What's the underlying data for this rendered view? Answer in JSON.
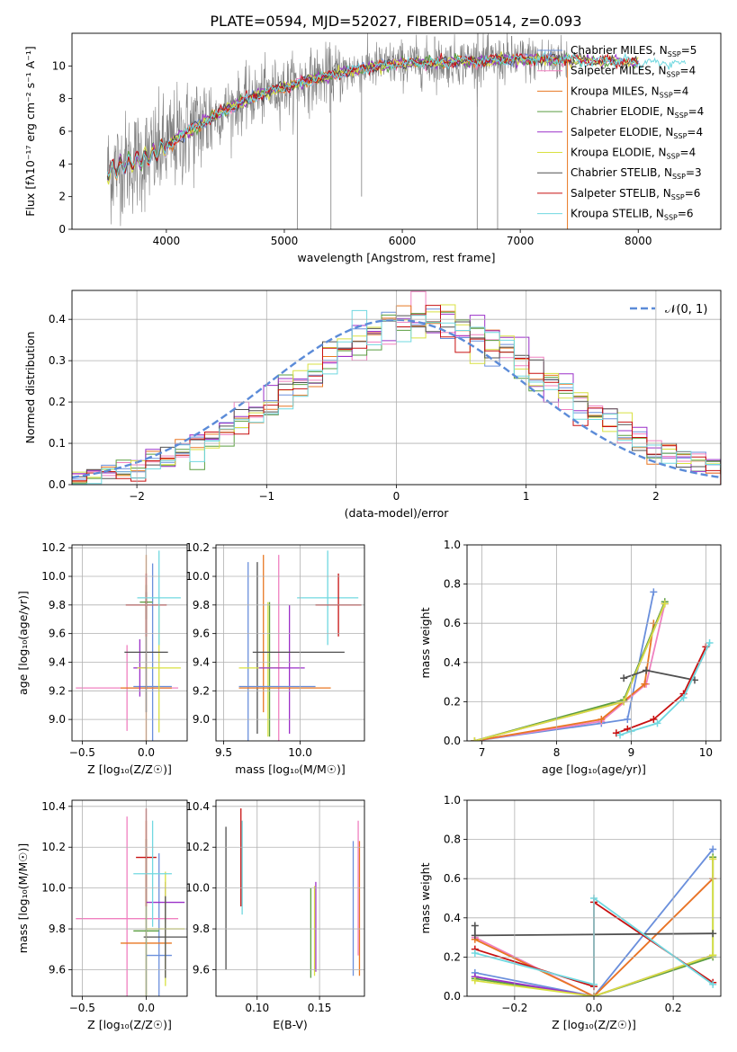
{
  "figure": {
    "title": "PLATE=0594, MJD=52027, FIBERID=0514, z=0.093"
  },
  "colors": {
    "chabrier_miles": "#6a8fdc",
    "salpeter_miles": "#f080c0",
    "kroupa_miles": "#e87722",
    "chabrier_elodie": "#5a9e40",
    "salpeter_elodie": "#9b30c8",
    "kroupa_elodie": "#d8e040",
    "chabrier_stelib": "#505050",
    "salpeter_stelib": "#c81010",
    "kroupa_stelib": "#70d8e0",
    "data": "#808080"
  },
  "chart_data": [
    {
      "id": "spectrum",
      "type": "line",
      "xlabel": "wavelength [Angstrom, rest frame]",
      "ylabel": "Flux [fλ10⁻¹⁷ erg cm⁻² s⁻¹ A⁻¹]",
      "xlim": [
        3200,
        8700
      ],
      "ylim": [
        0,
        12
      ],
      "xticks": [
        "4000",
        "5000",
        "6000",
        "7000",
        "8000"
      ],
      "yticks": [
        "0",
        "2",
        "4",
        "6",
        "8",
        "10"
      ],
      "legend": "right",
      "legend_entries": [
        {
          "key": "chabrier_miles",
          "label": "Chabrier MILES, N",
          "sub": "SSP",
          "tail": "=5"
        },
        {
          "key": "salpeter_miles",
          "label": "Salpeter MILES, N",
          "sub": "SSP",
          "tail": "=4"
        },
        {
          "key": "kroupa_miles",
          "label": "Kroupa MILES, N",
          "sub": "SSP",
          "tail": "=4"
        },
        {
          "key": "chabrier_elodie",
          "label": "Chabrier ELODIE, N",
          "sub": "SSP",
          "tail": "=4"
        },
        {
          "key": "salpeter_elodie",
          "label": "Salpeter ELODIE, N",
          "sub": "SSP",
          "tail": "=4"
        },
        {
          "key": "kroupa_elodie",
          "label": "Kroupa ELODIE, N",
          "sub": "SSP",
          "tail": "=4"
        },
        {
          "key": "chabrier_stelib",
          "label": "Chabrier STELIB, N",
          "sub": "SSP",
          "tail": "=3"
        },
        {
          "key": "salpeter_stelib",
          "label": "Salpeter STELIB, N",
          "sub": "SSP",
          "tail": "=6"
        },
        {
          "key": "kroupa_stelib",
          "label": "Kroupa STELIB, N",
          "sub": "SSP",
          "tail": "=6"
        }
      ],
      "continuum": {
        "x": [
          3500,
          3650,
          3800,
          3950,
          4100,
          4300,
          4500,
          4700,
          4900,
          5100,
          5300,
          5500,
          5700,
          5900,
          6100,
          6300,
          6500,
          6700,
          6900,
          7100,
          7300,
          7400
        ],
        "y": [
          3.5,
          4.0,
          4.3,
          4.8,
          5.6,
          6.5,
          7.3,
          8.0,
          8.5,
          8.9,
          9.3,
          9.6,
          9.9,
          10.1,
          10.2,
          10.2,
          10.3,
          10.3,
          10.4,
          10.4,
          10.4,
          10.4
        ]
      },
      "model_extension": {
        "x": [
          7400,
          7600,
          7800,
          8000,
          8200,
          8400
        ],
        "y": [
          10.4,
          10.3,
          10.3,
          10.2,
          10.2,
          10.1
        ]
      },
      "noise_sigma": [
        {
          "x": [
            3500,
            4400
          ],
          "sigma": 1.6
        },
        {
          "x": [
            4400,
            5500
          ],
          "sigma": 0.9
        },
        {
          "x": [
            5500,
            7400
          ],
          "sigma": 0.7
        }
      ],
      "line_drops": [
        {
          "x": 5110,
          "y": 0
        },
        {
          "x": 5395,
          "y": 0
        },
        {
          "x": 5655,
          "y": 2.0
        },
        {
          "x": 6635,
          "y": 0
        },
        {
          "x": 6808,
          "y": 0
        }
      ],
      "line_spikes": [
        {
          "x": 6640,
          "y": 12
        },
        {
          "x": 6275,
          "y": 11.8
        }
      ]
    },
    {
      "id": "residuals",
      "type": "line",
      "xlabel": "(data-model)/error",
      "ylabel": "Normed distribution",
      "xlim": [
        -2.5,
        2.5
      ],
      "ylim": [
        0,
        0.47
      ],
      "xticks": [
        "−2",
        "−1",
        "0",
        "1",
        "2"
      ],
      "yticks": [
        "0.0",
        "0.1",
        "0.2",
        "0.3",
        "0.4"
      ],
      "legend": "top-right",
      "legend_label": "𝒩(0, 1)",
      "bin_edges_start": -2.5,
      "bin_width": 0.1136,
      "hist_mean": [
        0.02,
        0.025,
        0.03,
        0.035,
        0.045,
        0.055,
        0.065,
        0.075,
        0.09,
        0.11,
        0.13,
        0.15,
        0.175,
        0.2,
        0.22,
        0.245,
        0.27,
        0.3,
        0.325,
        0.35,
        0.37,
        0.385,
        0.395,
        0.4,
        0.4,
        0.395,
        0.385,
        0.37,
        0.35,
        0.325,
        0.3,
        0.27,
        0.245,
        0.22,
        0.2,
        0.175,
        0.15,
        0.13,
        0.11,
        0.09,
        0.075,
        0.065,
        0.055,
        0.045,
        0.038
      ],
      "hist_jitter": 0.035
    },
    {
      "id": "age_vs_Z",
      "type": "scatter",
      "xlabel": "Z [log₁₀(Z/Z☉)]",
      "ylabel": "age  [log₁₀(age/yr)]",
      "xlim": [
        -0.58,
        0.32
      ],
      "ylim": [
        8.85,
        10.22
      ],
      "xticks": [
        "−0.5",
        "0.0"
      ],
      "xtick_values": [
        -0.5,
        0.0
      ],
      "yticks": [
        "9.0",
        "9.2",
        "9.4",
        "9.6",
        "9.8",
        "10.0",
        "10.2"
      ],
      "ytick_values": [
        9.0,
        9.2,
        9.4,
        9.6,
        9.8,
        10.0,
        10.2
      ],
      "points": [
        {
          "key": "chabrier_miles",
          "x": 0.05,
          "xe": 0.15,
          "y": 9.23,
          "ye": 0.86
        },
        {
          "key": "salpeter_miles",
          "x": -0.15,
          "xe": 0.4,
          "y": 9.22,
          "ye": 0.3
        },
        {
          "key": "kroupa_miles",
          "x": 0.0,
          "xe": 0.2,
          "y": 9.22,
          "ye": 0.93
        },
        {
          "key": "chabrier_elodie",
          "x": 0.0,
          "xe": 0.05,
          "y": 9.82,
          "ye": 0.12
        },
        {
          "key": "salpeter_elodie",
          "x": -0.05,
          "xe": 0.05,
          "y": 9.36,
          "ye": 0.2
        },
        {
          "key": "kroupa_elodie",
          "x": 0.1,
          "xe": 0.17,
          "y": 9.36,
          "ye": 0.45
        },
        {
          "key": "chabrier_stelib",
          "x": 0.0,
          "xe": 0.17,
          "y": 9.47,
          "ye": 0.42
        },
        {
          "key": "salpeter_stelib",
          "x": 0.0,
          "xe": 0.16,
          "y": 9.8,
          "ye": 0.22
        },
        {
          "key": "kroupa_stelib",
          "x": 0.1,
          "xe": 0.17,
          "y": 9.85,
          "ye": 0.33
        }
      ]
    },
    {
      "id": "age_vs_mass",
      "type": "scatter",
      "xlabel": "mass [log₁₀(M/M☉)]",
      "ylabel": "",
      "xlim": [
        9.45,
        10.42
      ],
      "ylim": [
        8.85,
        10.22
      ],
      "xticks": [
        "9.5",
        "10.0"
      ],
      "xtick_values": [
        9.5,
        10.0
      ],
      "yticks": [
        "9.0",
        "9.2",
        "9.4",
        "9.6",
        "9.8",
        "10.0",
        "10.2"
      ],
      "ytick_values": [
        9.0,
        9.2,
        9.4,
        9.6,
        9.8,
        10.0,
        10.2
      ],
      "points": [
        {
          "key": "chabrier_miles",
          "x": 9.66,
          "xe": 0.0,
          "y": 9.4,
          "ye": 0.7
        },
        {
          "key": "kroupa_miles",
          "x": 9.76,
          "xe": 0.0,
          "y": 9.6,
          "ye": 0.55
        },
        {
          "key": "salpeter_miles",
          "x": 9.86,
          "xe": 0.0,
          "y": 9.5,
          "ye": 0.65
        },
        {
          "key": "chabrier_elodie",
          "x": 9.8,
          "xe": 0.0,
          "y": 9.35,
          "ye": 0.47
        },
        {
          "key": "kroupa_elodie",
          "x": 9.79,
          "xe": 0.0,
          "y": 9.35,
          "ye": 0.47
        },
        {
          "key": "salpeter_elodie",
          "x": 9.93,
          "xe": 0.0,
          "y": 9.35,
          "ye": 0.45
        },
        {
          "key": "chabrier_stelib",
          "x": 9.72,
          "xe": 0.0,
          "y": 9.5,
          "ye": 0.6
        },
        {
          "key": "kroupa_miles_h",
          "color_key": "kroupa_miles",
          "x": 9.9,
          "xe": 0.3,
          "y": 9.22,
          "ye": 0.0
        },
        {
          "key": "chabrier_miles_h",
          "color_key": "chabrier_miles",
          "x": 9.85,
          "xe": 0.25,
          "y": 9.23,
          "ye": 0.0
        },
        {
          "key": "kroupa_elodie_h",
          "color_key": "kroupa_elodie",
          "x": 9.75,
          "xe": 0.15,
          "y": 9.36,
          "ye": 0.0
        },
        {
          "key": "salpeter_elodie_h",
          "color_key": "salpeter_elodie",
          "x": 9.88,
          "xe": 0.15,
          "y": 9.36,
          "ye": 0.0
        },
        {
          "key": "chabrier_stelib_h",
          "color_key": "chabrier_stelib",
          "x": 9.99,
          "xe": 0.3,
          "y": 9.47,
          "ye": 0.0
        },
        {
          "key": "kroupa_stelib",
          "x": 10.18,
          "xe": 0.2,
          "y": 9.85,
          "ye": 0.33
        },
        {
          "key": "salpeter_stelib",
          "x": 10.25,
          "xe": 0.15,
          "y": 9.8,
          "ye": 0.22
        }
      ]
    },
    {
      "id": "mass_weight_vs_age",
      "type": "line",
      "xlabel": "age  [log₁₀(age/yr)]",
      "ylabel": "mass weight",
      "xlim": [
        6.8,
        10.2
      ],
      "ylim": [
        0,
        1.0
      ],
      "xticks": [
        "7",
        "8",
        "9",
        "10"
      ],
      "xtick_values": [
        7,
        8,
        9,
        10
      ],
      "yticks": [
        "0.0",
        "0.2",
        "0.4",
        "0.6",
        "0.8",
        "1.0"
      ],
      "ytick_values": [
        0,
        0.2,
        0.4,
        0.6,
        0.8,
        1.0
      ],
      "series": [
        {
          "key": "chabrier_miles",
          "x": [
            6.9,
            8.6,
            8.95,
            9.3
          ],
          "y": [
            0.0,
            0.09,
            0.11,
            0.76
          ]
        },
        {
          "key": "salpeter_miles",
          "x": [
            6.9,
            8.6,
            9.2,
            9.45
          ],
          "y": [
            0.0,
            0.1,
            0.29,
            0.7
          ]
        },
        {
          "key": "kroupa_miles",
          "x": [
            6.9,
            8.6,
            9.18,
            9.3
          ],
          "y": [
            0.0,
            0.11,
            0.29,
            0.6
          ]
        },
        {
          "key": "chabrier_elodie",
          "x": [
            6.9,
            8.9,
            9.45
          ],
          "y": [
            0.0,
            0.21,
            0.71
          ]
        },
        {
          "key": "salpeter_elodie",
          "x": [
            6.9,
            8.9,
            9.45
          ],
          "y": [
            0.0,
            0.2,
            0.7
          ]
        },
        {
          "key": "kroupa_elodie",
          "x": [
            6.9,
            8.9,
            9.45
          ],
          "y": [
            0.0,
            0.2,
            0.7
          ]
        },
        {
          "key": "chabrier_stelib",
          "x": [
            8.9,
            9.2,
            9.85
          ],
          "y": [
            0.32,
            0.36,
            0.31
          ]
        },
        {
          "key": "salpeter_stelib",
          "x": [
            8.8,
            8.95,
            9.3,
            9.7,
            10.0
          ],
          "y": [
            0.04,
            0.06,
            0.11,
            0.24,
            0.48
          ]
        },
        {
          "key": "kroupa_stelib",
          "x": [
            8.85,
            9.0,
            9.35,
            9.7,
            10.05
          ],
          "y": [
            0.03,
            0.05,
            0.09,
            0.22,
            0.5
          ]
        }
      ]
    },
    {
      "id": "mass_vs_Z",
      "type": "scatter",
      "xlabel": "Z [log₁₀(Z/Z☉)]",
      "ylabel": "mass [log₁₀(M/M☉)]",
      "xlim": [
        -0.58,
        0.32
      ],
      "ylim": [
        9.47,
        10.43
      ],
      "xticks": [
        "−0.5",
        "0.0"
      ],
      "xtick_values": [
        -0.5,
        0.0
      ],
      "yticks": [
        "9.6",
        "9.8",
        "10.0",
        "10.2",
        "10.4"
      ],
      "ytick_values": [
        9.6,
        9.8,
        10.0,
        10.2,
        10.4
      ],
      "points": [
        {
          "key": "chabrier_miles",
          "x": 0.1,
          "xe": 0.1,
          "y": 9.67,
          "ye": 0.5
        },
        {
          "key": "salpeter_miles",
          "x": -0.15,
          "xe": 0.4,
          "y": 9.85,
          "ye": 0.5
        },
        {
          "key": "kroupa_miles",
          "x": 0.0,
          "xe": 0.2,
          "y": 9.73,
          "ye": 0.6
        },
        {
          "key": "chabrier_elodie",
          "x": 0.0,
          "xe": 0.1,
          "y": 9.79,
          "ye": 0.45
        },
        {
          "key": "salpeter_elodie",
          "x": 0.15,
          "xe": 0.15,
          "y": 9.93,
          "ye": 0.1
        },
        {
          "key": "kroupa_elodie",
          "x": 0.15,
          "xe": 0.15,
          "y": 9.8,
          "ye": 0.28
        },
        {
          "key": "chabrier_stelib",
          "x": 0.15,
          "xe": 0.17,
          "y": 9.76,
          "ye": 0.2
        },
        {
          "key": "salpeter_stelib",
          "x": 0.0,
          "xe": 0.08,
          "y": 10.15,
          "ye": 0.24
        },
        {
          "key": "kroupa_stelib",
          "x": 0.05,
          "xe": 0.15,
          "y": 10.07,
          "ye": 0.26
        }
      ]
    },
    {
      "id": "mass_vs_ebv",
      "type": "scatter",
      "xlabel": "E(B-V)",
      "ylabel": "",
      "xlim": [
        0.067,
        0.186
      ],
      "ylim": [
        9.47,
        10.43
      ],
      "xticks": [
        "0.10",
        "0.15"
      ],
      "xtick_values": [
        0.1,
        0.15
      ],
      "yticks": [
        "9.6",
        "9.8",
        "10.0",
        "10.2",
        "10.4"
      ],
      "ytick_values": [
        9.6,
        9.8,
        10.0,
        10.2,
        10.4
      ],
      "points": [
        {
          "key": "chabrier_stelib",
          "x": 0.075,
          "xe": 0.0,
          "y": 9.95,
          "ye": 0.35
        },
        {
          "key": "salpeter_stelib",
          "x": 0.087,
          "xe": 0.0,
          "y": 10.15,
          "ye": 0.24
        },
        {
          "key": "kroupa_stelib",
          "x": 0.088,
          "xe": 0.0,
          "y": 10.1,
          "ye": 0.23
        },
        {
          "key": "chabrier_elodie",
          "x": 0.143,
          "xe": 0.0,
          "y": 9.78,
          "ye": 0.22
        },
        {
          "key": "salpeter_elodie",
          "x": 0.147,
          "xe": 0.0,
          "y": 9.81,
          "ye": 0.22
        },
        {
          "key": "kroupa_elodie",
          "x": 0.146,
          "xe": 0.0,
          "y": 9.79,
          "ye": 0.22
        },
        {
          "key": "chabrier_miles",
          "x": 0.177,
          "xe": 0.0,
          "y": 9.9,
          "ye": 0.33
        },
        {
          "key": "kroupa_miles",
          "x": 0.182,
          "xe": 0.0,
          "y": 9.9,
          "ye": 0.33
        },
        {
          "key": "salpeter_miles",
          "x": 0.181,
          "xe": 0.0,
          "y": 10.0,
          "ye": 0.33
        }
      ]
    },
    {
      "id": "mass_weight_vs_Z",
      "type": "line",
      "xlabel": "Z [log₁₀(Z/Z☉)]",
      "ylabel": "mass weight",
      "xlim": [
        -0.32,
        0.32
      ],
      "ylim": [
        0,
        1.0
      ],
      "xticks": [
        "−0.2",
        "0.0",
        "0.2"
      ],
      "xtick_values": [
        -0.2,
        0.0,
        0.2
      ],
      "yticks": [
        "0.0",
        "0.2",
        "0.4",
        "0.6",
        "0.8",
        "1.0"
      ],
      "ytick_values": [
        0,
        0.2,
        0.4,
        0.6,
        0.8,
        1.0
      ],
      "series": [
        {
          "key": "chabrier_miles",
          "x": [
            -0.3,
            -0.3,
            0.0,
            0.3
          ],
          "y": [
            0.1,
            0.12,
            0.0,
            0.75
          ]
        },
        {
          "key": "salpeter_miles",
          "x": [
            -0.3,
            0.0,
            0.3,
            0.3
          ],
          "y": [
            0.3,
            0.0,
            0.6,
            0.7
          ]
        },
        {
          "key": "kroupa_miles",
          "x": [
            -0.3,
            0.0,
            0.3
          ],
          "y": [
            0.29,
            0.0,
            0.6
          ]
        },
        {
          "key": "chabrier_elodie",
          "x": [
            -0.3,
            0.0,
            0.3,
            0.3
          ],
          "y": [
            0.09,
            0.0,
            0.2,
            0.71
          ]
        },
        {
          "key": "salpeter_elodie",
          "x": [
            -0.3,
            0.0,
            0.3
          ],
          "y": [
            0.1,
            0.0,
            0.21
          ]
        },
        {
          "key": "kroupa_elodie",
          "x": [
            -0.3,
            0.0,
            0.3,
            0.3
          ],
          "y": [
            0.08,
            0.0,
            0.21,
            0.7
          ]
        },
        {
          "key": "chabrier_stelib",
          "x": [
            -0.3,
            -0.3,
            0.3
          ],
          "y": [
            0.36,
            0.31,
            0.32
          ]
        },
        {
          "key": "salpeter_stelib",
          "x": [
            -0.3,
            0.0,
            0.0,
            0.3
          ],
          "y": [
            0.24,
            0.05,
            0.48,
            0.07
          ]
        },
        {
          "key": "kroupa_stelib",
          "x": [
            -0.3,
            0.0,
            0.0,
            0.3
          ],
          "y": [
            0.22,
            0.06,
            0.5,
            0.06
          ]
        }
      ]
    }
  ]
}
